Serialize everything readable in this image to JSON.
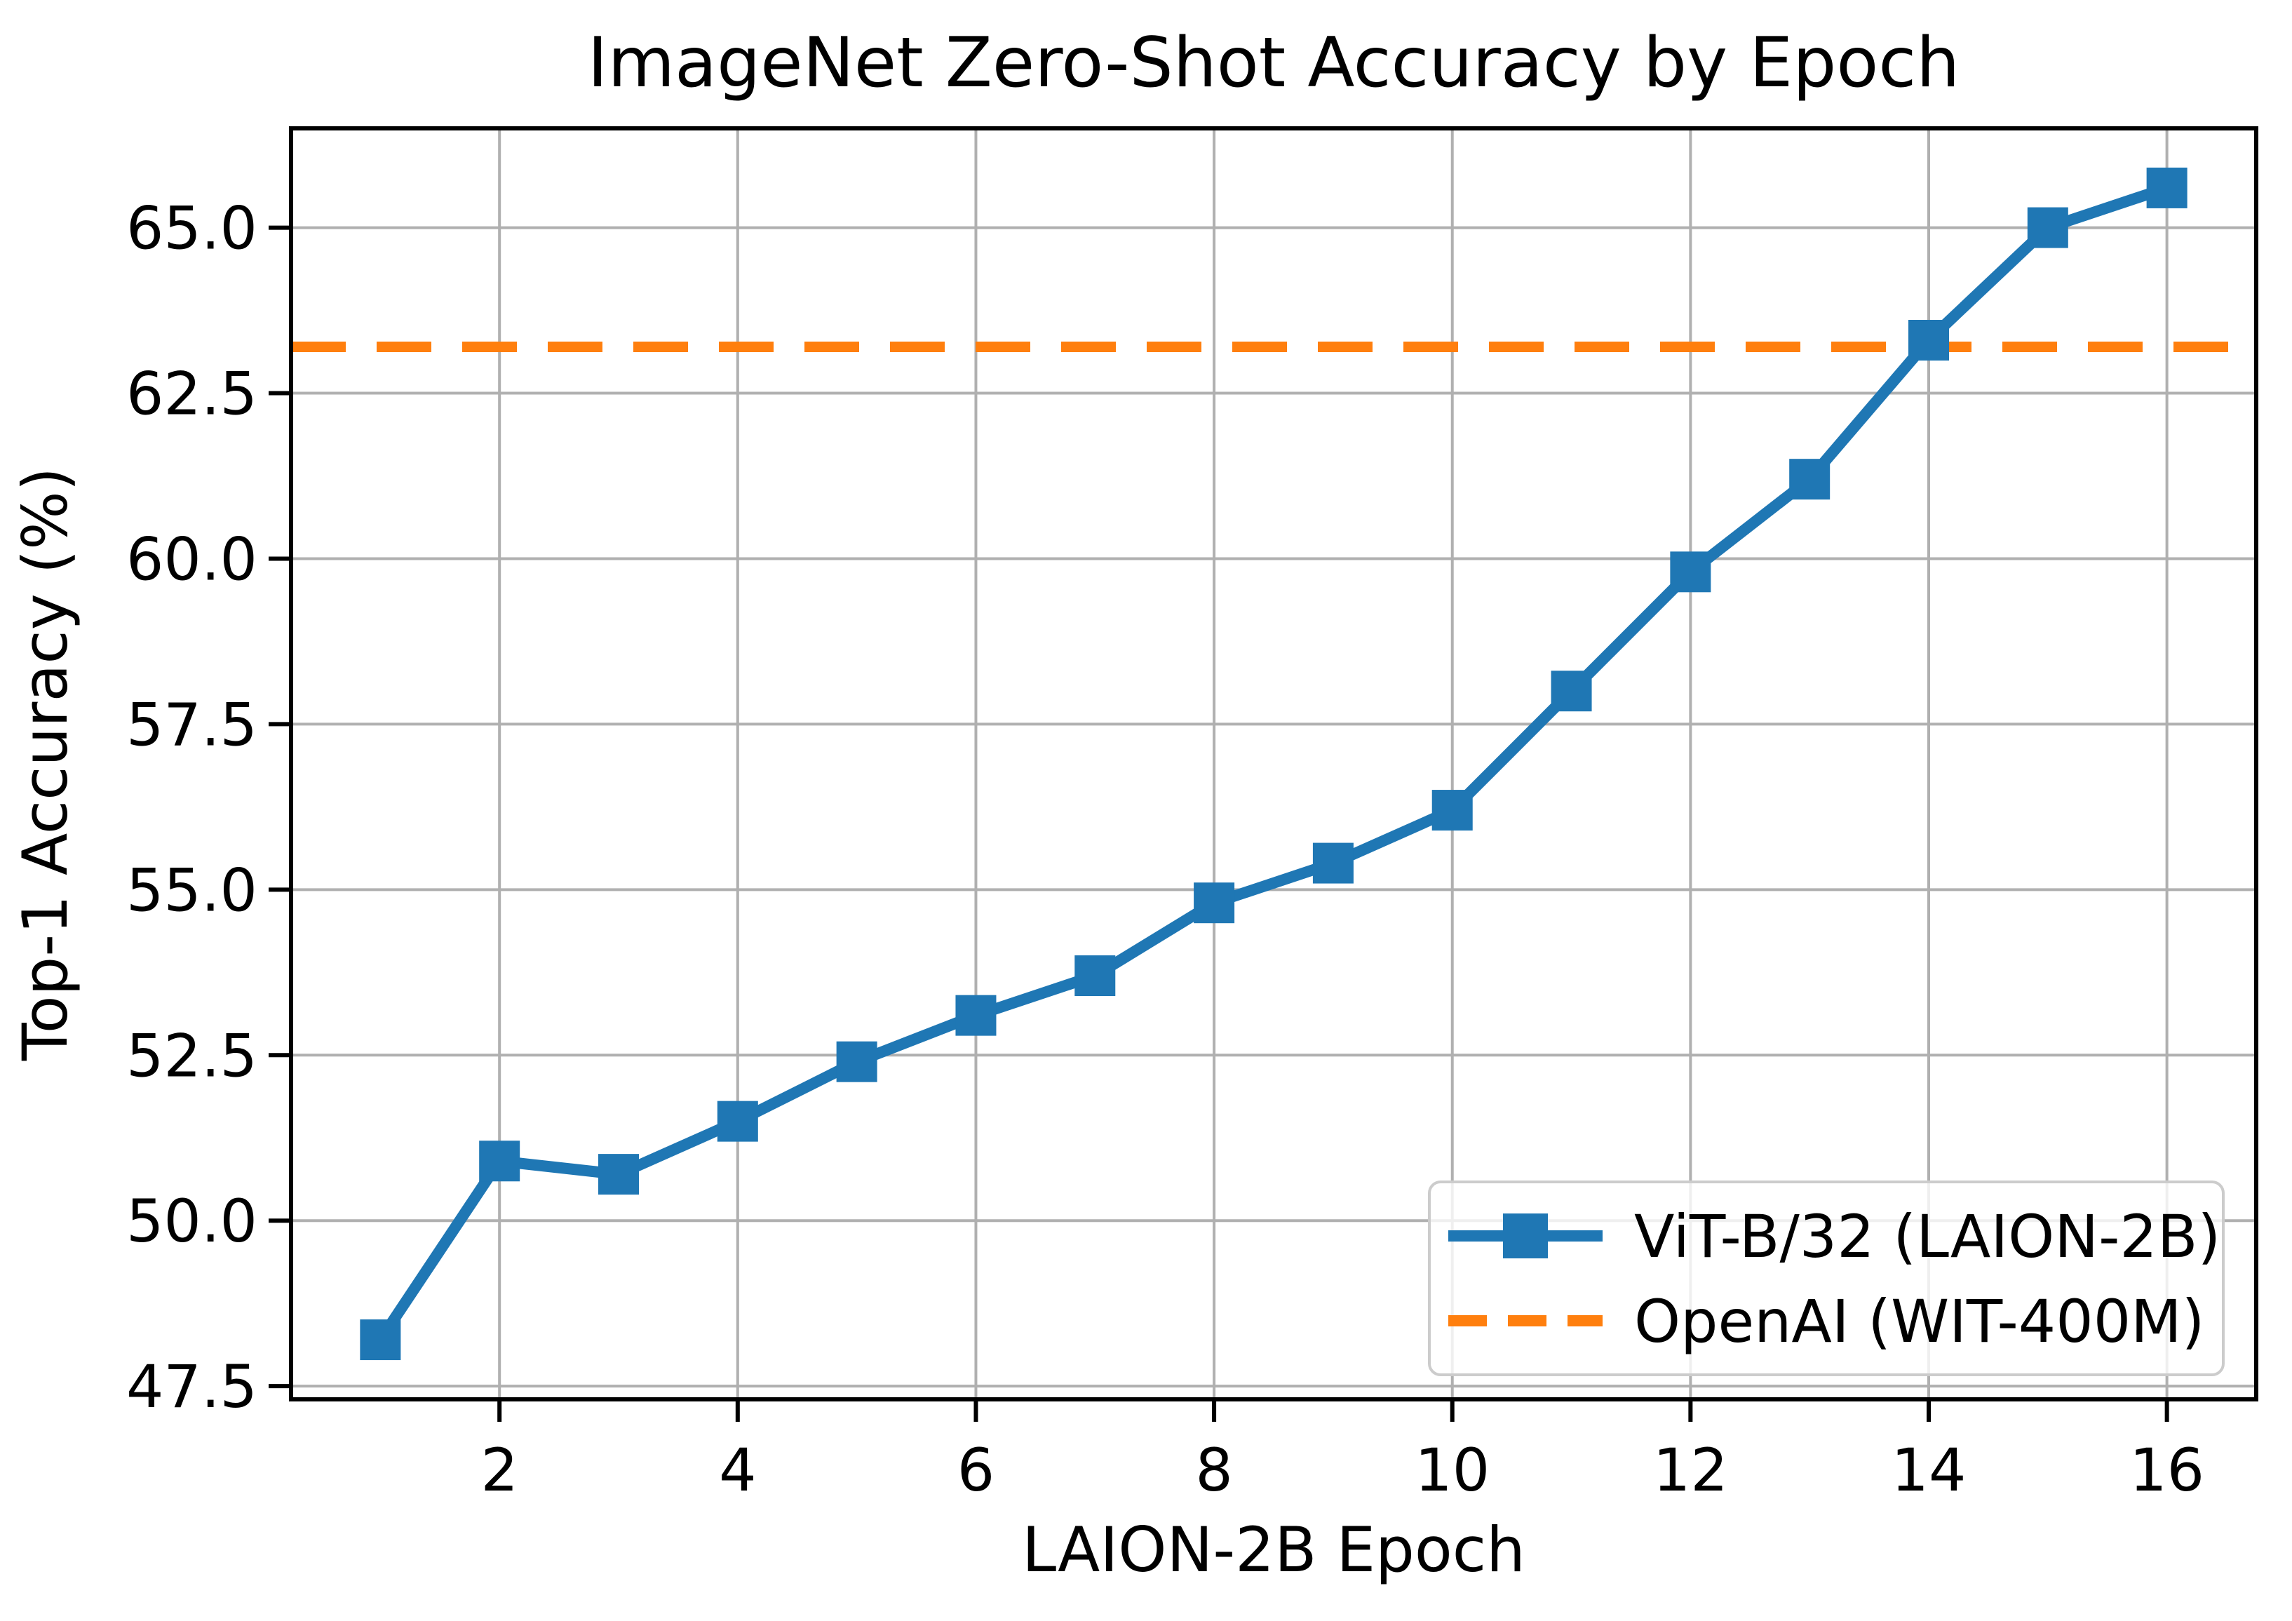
{
  "chart_data": {
    "type": "line",
    "title": "ImageNet Zero-Shot Accuracy by Epoch",
    "xlabel": "LAION-2B Epoch",
    "ylabel": "Top-1 Accuracy (%)",
    "xlim": [
      0.25,
      16.75
    ],
    "ylim": [
      47.3,
      66.5
    ],
    "xticks": [
      2,
      4,
      6,
      8,
      10,
      12,
      14,
      16
    ],
    "yticks": [
      47.5,
      50.0,
      52.5,
      55.0,
      57.5,
      60.0,
      62.5,
      65.0
    ],
    "grid": true,
    "legend_position": "lower right",
    "series": [
      {
        "name": "ViT-B/32 (LAION-2B)",
        "type": "line",
        "marker": "square",
        "color": "#1f77b4",
        "x": [
          1,
          2,
          3,
          4,
          5,
          6,
          7,
          8,
          9,
          10,
          11,
          12,
          13,
          14,
          15,
          16
        ],
        "values": [
          48.2,
          50.9,
          50.7,
          51.5,
          52.4,
          53.1,
          53.7,
          54.8,
          55.4,
          56.2,
          58.0,
          59.8,
          61.2,
          63.3,
          65.0,
          65.6
        ]
      },
      {
        "name": "OpenAI (WIT-400M)",
        "type": "hline",
        "linestyle": "dashed",
        "color": "#ff7f0e",
        "value": 63.2
      }
    ]
  },
  "colors": {
    "series_blue": "#1f77b4",
    "baseline_orange": "#ff7f0e",
    "grid": "#b0b0b0",
    "spine": "#000000",
    "legend_border": "#cccccc",
    "background": "#ffffff"
  }
}
